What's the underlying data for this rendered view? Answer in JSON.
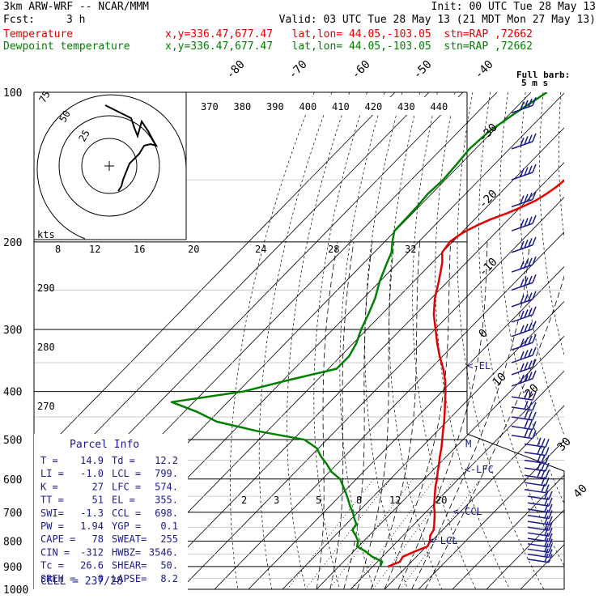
{
  "header": {
    "model": "3km ARW-WRF -- NCAR/MMM",
    "init": "Init: 00 UTC Tue 28 May 13",
    "fcst_label": "Fcst:",
    "fcst_value": "3 h",
    "valid": "Valid: 03 UTC Tue 28 May 13 (21 MDT Mon 27 May 13)",
    "temperature_label": "Temperature",
    "dewpoint_label": "Dewpoint temperature",
    "location": "x,y=336.47,677.47   lat,lon= 44.05,-103.05  stn=RAP ,72662"
  },
  "colors": {
    "temperature": "#e00000",
    "dewpoint": "#008000",
    "barb": "#1a1a8c",
    "info": "#1a1a8c",
    "hodo": "#000000"
  },
  "chart_data": {
    "type": "skew-t",
    "pressure_levels": [
      100,
      200,
      300,
      400,
      500,
      600,
      700,
      800,
      900,
      1000
    ],
    "isotherm_labels": [
      -80,
      -70,
      -60,
      -50,
      -40,
      -30,
      -20,
      -10,
      0,
      10,
      20,
      30,
      40
    ],
    "theta_e_labels": [
      370,
      380,
      390,
      400,
      410,
      420,
      430,
      440
    ],
    "theta_labels": [
      290,
      280,
      270
    ],
    "mixing_ratio_labels": [
      2,
      3,
      5,
      8,
      12,
      20
    ],
    "hodo_speed_labels": [
      8,
      12,
      16,
      20,
      24,
      28,
      32
    ],
    "hodo_speed_unit": "kts",
    "hodo_ring_labels": [
      25,
      50,
      75
    ],
    "barb_legend": [
      "Full barb:",
      "5 m s"
    ],
    "temperature": {
      "pressure": [
        900,
        880,
        860,
        840,
        820,
        800,
        780,
        760,
        740,
        720,
        700,
        680,
        660,
        640,
        620,
        600,
        580,
        560,
        540,
        520,
        500,
        480,
        460,
        440,
        420,
        400,
        380,
        360,
        340,
        320,
        300,
        280,
        260,
        240,
        220,
        210,
        200,
        195,
        190,
        185,
        180,
        175,
        170,
        165,
        160,
        155,
        150,
        145,
        140,
        135,
        130,
        125,
        120,
        115,
        110,
        105,
        100
      ],
      "value": [
        14.5,
        16.6,
        16.0,
        17.9,
        20.3,
        19.5,
        18.0,
        17.4,
        15.9,
        14.3,
        12.6,
        10.6,
        8.9,
        7.1,
        5.3,
        3.7,
        1.8,
        0.0,
        -2.0,
        -3.9,
        -6.1,
        -8.4,
        -10.7,
        -13.3,
        -16.1,
        -19.0,
        -22.3,
        -26.2,
        -30.8,
        -35.3,
        -39.8,
        -44.6,
        -48.9,
        -52.7,
        -57.1,
        -60.0,
        -60.8,
        -60.2,
        -59.2,
        -57.4,
        -55.2,
        -52.1,
        -49.6,
        -47.4,
        -46.2,
        -45.3,
        -44.8,
        -44.6,
        -44.7,
        -44.7,
        -45.0,
        -45.2,
        -44.8,
        -45.0,
        -45.7,
        -46.9,
        -48.6
      ]
    },
    "dewpoint": {
      "pressure": [
        900,
        880,
        860,
        840,
        820,
        800,
        780,
        760,
        740,
        720,
        700,
        680,
        660,
        640,
        620,
        600,
        580,
        560,
        540,
        520,
        500,
        480,
        460,
        440,
        420,
        400,
        380,
        360,
        340,
        320,
        300,
        280,
        260,
        240,
        220,
        210,
        200,
        190,
        180,
        170,
        160,
        150,
        140,
        130,
        120,
        110,
        100
      ],
      "value": [
        12.2,
        11.4,
        7.0,
        3.7,
        -0.4,
        -1.6,
        -3.9,
        -6.5,
        -7.0,
        -9.3,
        -11.5,
        -14.1,
        -16.5,
        -19.1,
        -21.9,
        -24.8,
        -29.5,
        -33.0,
        -37.0,
        -40.6,
        -46.6,
        -63.3,
        -77.6,
        -86.0,
        -96.5,
        -78.5,
        -68.8,
        -57.6,
        -57.5,
        -59.1,
        -61.7,
        -63.9,
        -66.5,
        -70.1,
        -73.3,
        -74.9,
        -77.7,
        -80.3,
        -80.4,
        -80.6,
        -81.1,
        -80.6,
        -81.1,
        -81.8,
        -81.1,
        -78.6,
        -75.3
      ]
    },
    "annotations": [
      {
        "text": "<-EL",
        "pressure": 355,
        "temperature": -20.0
      },
      {
        "text": "<-LFC",
        "pressure": 574,
        "temperature": 9.0
      },
      {
        "text": "<-CCL",
        "pressure": 698,
        "temperature": 17.8
      },
      {
        "text": "<-LCL",
        "pressure": 799,
        "temperature": 19.0
      },
      {
        "text": "M",
        "pressure": 510,
        "temperature": 2.0
      }
    ],
    "hodograph": {
      "rings": [
        25,
        50,
        75
      ]
    }
  },
  "parcel_info": {
    "title": "Parcel Info",
    "rows": [
      [
        "T  =",
        "14.9",
        "Td =",
        "12.2"
      ],
      [
        "LI =",
        "-1.0",
        "LCL =",
        "799."
      ],
      [
        "K  =",
        "27",
        "LFC =",
        "574."
      ],
      [
        "TT =",
        "51",
        "EL  =",
        "355."
      ],
      [
        "SWI=",
        "-1.3",
        "CCL =",
        "698."
      ],
      [
        "PW =",
        "1.94",
        "YGP =",
        "0.1"
      ],
      [
        "CAPE =",
        "78",
        "SWEAT=",
        "255"
      ],
      [
        "CIN  =",
        "-312",
        "HWBZ=",
        "3546."
      ],
      [
        "Tc   =",
        "26.6",
        "SHEAR=",
        "50."
      ],
      [
        "SREH =",
        "0",
        "LAPSE=",
        "8.2"
      ]
    ],
    "cell": "CELL = 237/28"
  }
}
